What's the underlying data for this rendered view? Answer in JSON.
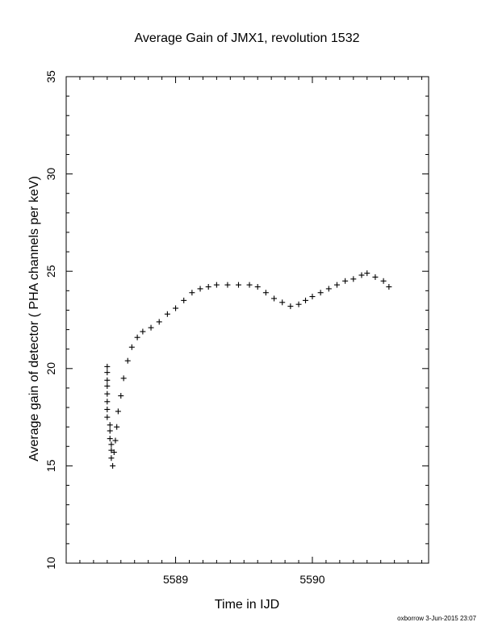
{
  "chart_data": {
    "type": "scatter",
    "title": "Average Gain of JMX1, revolution 1532",
    "xlabel": "Time in IJD",
    "ylabel": "Average gain of detector ( PHA channels per keV)",
    "xlim": [
      5588.2,
      5590.85
    ],
    "ylim": [
      10,
      35
    ],
    "xticks": [
      5589,
      5590
    ],
    "xtick_labels": [
      "5589",
      "5590"
    ],
    "yticks": [
      10,
      15,
      20,
      25,
      30,
      35
    ],
    "ytick_labels": [
      "10",
      "15",
      "20",
      "25",
      "30",
      "35"
    ],
    "grid": false,
    "marker": "+",
    "color": "#000000",
    "series": [
      {
        "x": [
          5588.5,
          5588.5,
          5588.5,
          5588.5,
          5588.5,
          5588.5,
          5588.5,
          5588.5,
          5588.52,
          5588.52,
          5588.52,
          5588.53,
          5588.53,
          5588.53,
          5588.54,
          5588.55,
          5588.56,
          5588.57,
          5588.58,
          5588.6,
          5588.62,
          5588.65,
          5588.68,
          5588.72,
          5588.76,
          5588.82,
          5588.88,
          5588.94,
          5589.0,
          5589.06,
          5589.12,
          5589.18,
          5589.24,
          5589.3,
          5589.38,
          5589.46,
          5589.54,
          5589.6,
          5589.66,
          5589.72,
          5589.78,
          5589.84,
          5589.9,
          5589.95,
          5590.0,
          5590.06,
          5590.12,
          5590.18,
          5590.24,
          5590.3,
          5590.36,
          5590.4,
          5590.46,
          5590.52,
          5590.56
        ],
        "y": [
          20.1,
          19.8,
          19.4,
          19.1,
          18.7,
          18.3,
          17.9,
          17.5,
          17.1,
          16.8,
          16.4,
          16.1,
          15.8,
          15.4,
          15.0,
          15.7,
          16.3,
          17.0,
          17.8,
          18.6,
          19.5,
          20.4,
          21.1,
          21.6,
          21.9,
          22.1,
          22.4,
          22.8,
          23.1,
          23.5,
          23.9,
          24.1,
          24.2,
          24.3,
          24.3,
          24.3,
          24.3,
          24.2,
          23.9,
          23.6,
          23.4,
          23.2,
          23.3,
          23.5,
          23.7,
          23.9,
          24.1,
          24.3,
          24.5,
          24.6,
          24.8,
          24.9,
          24.7,
          24.5,
          24.2
        ]
      }
    ]
  },
  "footer": "oxborrow  3-Jun-2015 23:07"
}
